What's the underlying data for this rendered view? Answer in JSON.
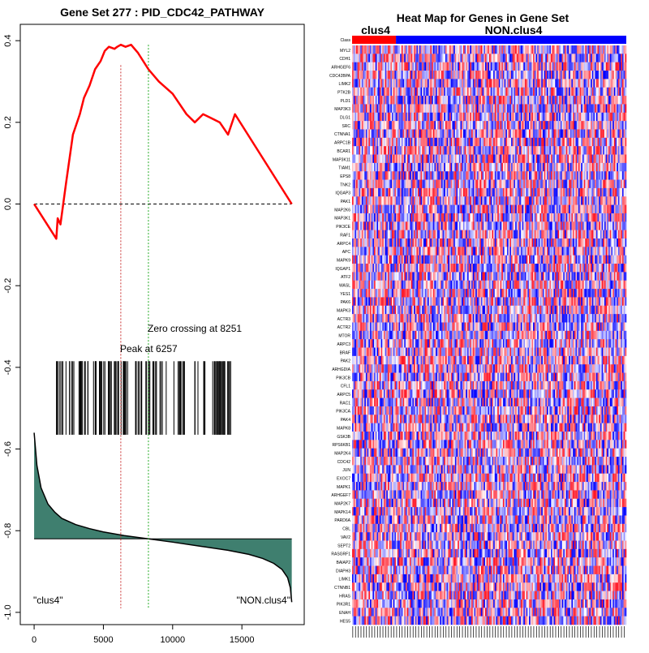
{
  "chart_data": [
    {
      "type": "line",
      "title": "Gene Set  277 : PID_CDC42_PATHWAY",
      "xlabel": "",
      "ylabel": "",
      "xlim": [
        -1000,
        19500
      ],
      "ylim": [
        -1.03,
        0.44
      ],
      "x_ticks": [
        "0",
        "5000",
        "10000",
        "15000"
      ],
      "y_ticks": [
        "0.4",
        "0.2",
        "0.0",
        "-0.2",
        "-0.4",
        "-0.6",
        "-0.8",
        "-1.0"
      ],
      "x_tick_values": [
        0,
        5000,
        10000,
        15000
      ],
      "y_tick_values": [
        0.4,
        0.2,
        0.0,
        -0.2,
        -0.4,
        -0.6,
        -0.8,
        -1.0
      ],
      "peak_label": "Peak at 6257",
      "peak_x": 6257,
      "zero_crossing_label": "Zero crossing at 8251",
      "zero_crossing_x": 8251,
      "left_phenotype": "\"clus4\"",
      "right_phenotype": "\"NON.clus4\"",
      "colors": {
        "es_line": "#ff0000",
        "peak_line": "#cc3333",
        "zero_line": "#22aa22",
        "fill": "#3f7f6f"
      },
      "running_es": {
        "x": [
          0,
          1600,
          1700,
          1900,
          2300,
          2800,
          3300,
          3600,
          4000,
          4400,
          4800,
          5100,
          5400,
          5800,
          6000,
          6257,
          6600,
          7000,
          7500,
          8251,
          9000,
          10000,
          11000,
          11600,
          12200,
          12800,
          13400,
          14000,
          14500,
          18600
        ],
        "y": [
          0.0,
          -0.085,
          -0.035,
          -0.05,
          0.05,
          0.17,
          0.22,
          0.26,
          0.29,
          0.33,
          0.35,
          0.375,
          0.385,
          0.38,
          0.385,
          0.39,
          0.385,
          0.39,
          0.37,
          0.33,
          0.3,
          0.27,
          0.22,
          0.2,
          0.22,
          0.21,
          0.2,
          0.17,
          0.22,
          0.0
        ]
      },
      "hits_range": [
        1500,
        14600
      ],
      "rank_metric": {
        "x": [
          0,
          200,
          500,
          1000,
          1500,
          2000,
          3000,
          4000,
          5000,
          6500,
          8251,
          10000,
          12000,
          14000,
          15500,
          16500,
          17300,
          17900,
          18300,
          18500,
          18600
        ],
        "y": [
          -0.56,
          -0.64,
          -0.695,
          -0.735,
          -0.755,
          -0.77,
          -0.785,
          -0.795,
          -0.803,
          -0.812,
          -0.82,
          -0.828,
          -0.838,
          -0.848,
          -0.858,
          -0.868,
          -0.88,
          -0.895,
          -0.915,
          -0.94,
          -0.975
        ]
      },
      "baseline_y": -0.82
    },
    {
      "type": "heatmap",
      "title": "Heat Map for Genes in Gene Set",
      "class_label": "Class",
      "groups": [
        {
          "name": "clus4",
          "fraction": 0.16,
          "color": "#ff0000"
        },
        {
          "name": "NON.clus4",
          "fraction": 0.84,
          "color": "#0000ff"
        }
      ],
      "row_labels": [
        "MYL2",
        "CDH1",
        "ARHGEF6",
        "CDC42BPA",
        "LIMK2",
        "PTK2B",
        "PLD1",
        "MAP3K3",
        "DLG1",
        "SRC",
        "CTNNA1",
        "ARPC1B",
        "BCAR1",
        "MAP3K11",
        "TIAM1",
        "EPS8",
        "TNK2",
        "IQGAP3",
        "PAK1",
        "MAP2K6",
        "MAP3K1",
        "PIK3CE",
        "RAF1",
        "ARPC4",
        "APC",
        "MAPK9",
        "IQGAP1",
        "ATF2",
        "WASL",
        "YES1",
        "PAK6",
        "MAPK3",
        "ACTR3",
        "ACTR2",
        "MTOR",
        "ARPC3",
        "BRAF",
        "PAK2",
        "ARHGDIA",
        "PIK3CB",
        "CFL1",
        "ARPC5",
        "RAC1",
        "PIK3CA",
        "PAK4",
        "MAPK8",
        "GSK3B",
        "RPS6KB1",
        "MAP2K4",
        "CDC42",
        "JUN",
        "EXOC7",
        "MAPK1",
        "ARHGEF7",
        "MAP2K7",
        "MAPK14",
        "PARD6A",
        "CBL",
        "VAV2",
        "SEPT2",
        "RASGRF1",
        "BAIAP2",
        "DIAPH3",
        "LIMK1",
        "CTNNB1",
        "HRAS",
        "PIK3R1",
        "ENAH",
        "HES5"
      ],
      "value_scale": "per-gene z-score colour from blue (low) through white to red (high)",
      "n_columns": 200
    }
  ]
}
